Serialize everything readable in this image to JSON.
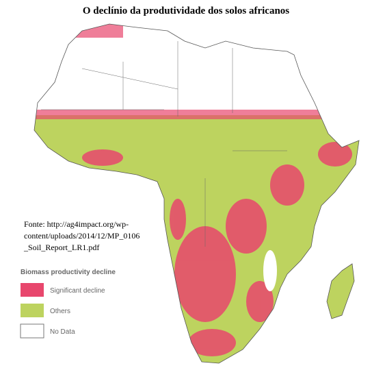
{
  "title": "O declínio da produtividade dos solos africanos",
  "source": [
    "Fonte: http://ag4impact.org/wp-",
    "content/uploads/2014/12/MP_0106",
    "_Soil_Report_LR1.pdf"
  ],
  "legend": {
    "title": "Biomass productivity decline",
    "items": [
      {
        "label": "Significant decline",
        "color": "#e8476d"
      },
      {
        "label": "Others",
        "color": "#bdd35f"
      },
      {
        "label": "No Data",
        "color": "#ffffff"
      }
    ]
  }
}
